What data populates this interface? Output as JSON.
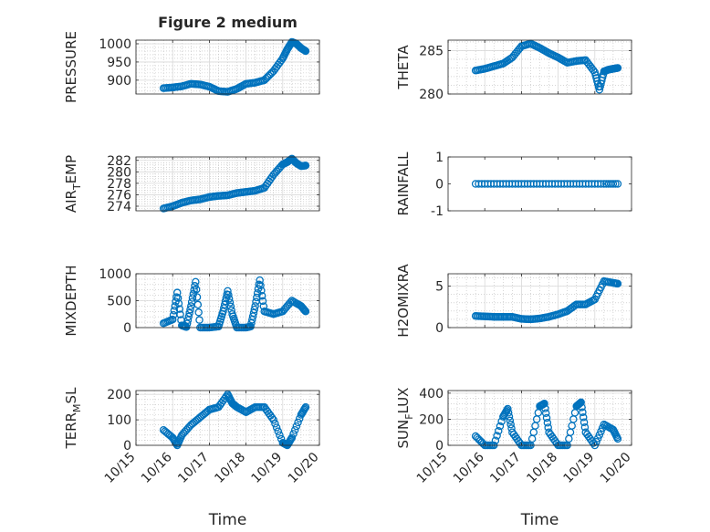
{
  "figure": {
    "title": "Figure 2 medium"
  },
  "chart_data": [
    {
      "type": "scatter",
      "title": "Figure 2 medium",
      "ylabel": "PRESSURE",
      "xlabel": "",
      "xlim": [
        "10/15",
        "10/20"
      ],
      "ylim": [
        862,
        1010
      ],
      "yticks": [
        "900",
        "950",
        "1000"
      ],
      "xtick_labels": [],
      "grid": true,
      "minor_grid": true,
      "marker": "open-circle",
      "color": "#0072BD",
      "x": [
        "10/15 18:00",
        "10/16 00:00",
        "10/16 06:00",
        "10/16 12:00",
        "10/16 18:00",
        "10/17 00:00",
        "10/17 06:00",
        "10/17 12:00",
        "10/17 18:00",
        "10/18 00:00",
        "10/18 06:00",
        "10/18 12:00",
        "10/18 18:00",
        "10/19 00:00",
        "10/19 03:00",
        "10/19 06:00",
        "10/19 09:00",
        "10/19 12:00",
        "10/19 15:00"
      ],
      "y": [
        878,
        880,
        883,
        890,
        888,
        882,
        870,
        868,
        876,
        890,
        893,
        900,
        925,
        960,
        985,
        1005,
        1000,
        988,
        980
      ]
    },
    {
      "type": "scatter",
      "ylabel": "THETA",
      "xlabel": "",
      "xlim": [
        "10/15",
        "10/20"
      ],
      "ylim": [
        280,
        286.2
      ],
      "yticks": [
        "280",
        "285"
      ],
      "xtick_labels": [],
      "grid": true,
      "minor_grid": true,
      "marker": "open-circle",
      "color": "#0072BD",
      "x": [
        "10/15 18:00",
        "10/16 00:00",
        "10/16 06:00",
        "10/16 12:00",
        "10/16 18:00",
        "10/17 00:00",
        "10/17 06:00",
        "10/17 12:00",
        "10/17 18:00",
        "10/18 00:00",
        "10/18 06:00",
        "10/18 12:00",
        "10/18 18:00",
        "10/19 00:00",
        "10/19 03:00",
        "10/19 06:00",
        "10/19 09:00",
        "10/19 12:00",
        "10/19 15:00"
      ],
      "y": [
        282.7,
        282.9,
        283.2,
        283.5,
        284.2,
        285.5,
        285.8,
        285.3,
        284.7,
        284.2,
        283.6,
        283.8,
        283.9,
        282.5,
        280.5,
        282.6,
        282.8,
        282.9,
        283.0
      ]
    },
    {
      "type": "scatter",
      "ylabel": "AIR_TEMP",
      "xlabel": "",
      "xlim": [
        "10/15",
        "10/20"
      ],
      "ylim": [
        273.2,
        282.6
      ],
      "yticks": [
        "274",
        "276",
        "278",
        "280",
        "282"
      ],
      "xtick_labels": [],
      "grid": true,
      "minor_grid": true,
      "marker": "open-circle",
      "color": "#0072BD",
      "x": [
        "10/15 18:00",
        "10/16 00:00",
        "10/16 06:00",
        "10/16 12:00",
        "10/16 18:00",
        "10/17 00:00",
        "10/17 06:00",
        "10/17 12:00",
        "10/17 18:00",
        "10/18 00:00",
        "10/18 06:00",
        "10/18 12:00",
        "10/18 18:00",
        "10/19 00:00",
        "10/19 03:00",
        "10/19 06:00",
        "10/19 09:00",
        "10/19 12:00",
        "10/19 15:00"
      ],
      "y": [
        273.6,
        274.0,
        274.6,
        275.0,
        275.2,
        275.6,
        275.8,
        275.9,
        276.3,
        276.5,
        276.7,
        277.2,
        279.5,
        281.3,
        281.7,
        282.3,
        281.5,
        281.0,
        281.1
      ]
    },
    {
      "type": "scatter",
      "ylabel": "RAINFALL",
      "xlabel": "",
      "xlim": [
        "10/15",
        "10/20"
      ],
      "ylim": [
        -1,
        1
      ],
      "yticks": [
        "-1",
        "0",
        "1"
      ],
      "xtick_labels": [],
      "grid": false,
      "marker": "open-circle",
      "color": "#0072BD",
      "x": [
        "10/15 18:00",
        "10/16 06:00",
        "10/16 18:00",
        "10/17 06:00",
        "10/17 18:00",
        "10/18 06:00",
        "10/18 18:00",
        "10/19 06:00",
        "10/19 15:00"
      ],
      "y": [
        0,
        0,
        0,
        0,
        0,
        0,
        0,
        0,
        0
      ]
    },
    {
      "type": "scatter",
      "ylabel": "MIXDEPTH",
      "xlabel": "",
      "xlim": [
        "10/15",
        "10/20"
      ],
      "ylim": [
        0,
        1000
      ],
      "yticks": [
        "0",
        "500",
        "1000"
      ],
      "xtick_labels": [],
      "grid": true,
      "minor_grid": true,
      "marker": "open-circle",
      "color": "#0072BD",
      "x": [
        "10/15 18:00",
        "10/16 00:00",
        "10/16 03:00",
        "10/16 06:00",
        "10/16 09:00",
        "10/16 12:00",
        "10/16 15:00",
        "10/16 18:00",
        "10/17 00:00",
        "10/17 06:00",
        "10/17 09:00",
        "10/17 12:00",
        "10/17 15:00",
        "10/17 18:00",
        "10/18 00:00",
        "10/18 03:00",
        "10/18 06:00",
        "10/18 09:00",
        "10/18 12:00",
        "10/18 18:00",
        "10/19 00:00",
        "10/19 06:00",
        "10/19 12:00",
        "10/19 15:00"
      ],
      "y": [
        80,
        150,
        650,
        40,
        10,
        400,
        850,
        0,
        0,
        20,
        300,
        680,
        250,
        0,
        0,
        20,
        400,
        880,
        300,
        250,
        300,
        500,
        400,
        300
      ]
    },
    {
      "type": "scatter",
      "ylabel": "H2OMIXRA",
      "xlabel": "",
      "xlim": [
        "10/15",
        "10/20"
      ],
      "ylim": [
        0,
        6.5
      ],
      "yticks": [
        "0",
        "5"
      ],
      "xtick_labels": [],
      "grid": true,
      "minor_grid": true,
      "marker": "open-circle",
      "color": "#0072BD",
      "x": [
        "10/15 18:00",
        "10/16 00:00",
        "10/16 06:00",
        "10/16 12:00",
        "10/16 18:00",
        "10/17 00:00",
        "10/17 06:00",
        "10/17 12:00",
        "10/17 18:00",
        "10/18 00:00",
        "10/18 06:00",
        "10/18 12:00",
        "10/18 18:00",
        "10/19 00:00",
        "10/19 06:00",
        "10/19 12:00",
        "10/19 15:00"
      ],
      "y": [
        1.4,
        1.35,
        1.3,
        1.3,
        1.3,
        1.05,
        1.0,
        1.1,
        1.3,
        1.6,
        2.0,
        2.8,
        2.8,
        3.4,
        5.6,
        5.4,
        5.3
      ]
    },
    {
      "type": "scatter",
      "ylabel": "TERR_MSL",
      "xlabel": "Time",
      "xlim": [
        "10/15",
        "10/20"
      ],
      "ylim": [
        0,
        215
      ],
      "yticks": [
        "0",
        "100",
        "200"
      ],
      "xtick_labels": [
        "10/15",
        "10/16",
        "10/17",
        "10/18",
        "10/19",
        "10/20"
      ],
      "grid": true,
      "minor_grid": true,
      "marker": "open-circle",
      "color": "#0072BD",
      "x": [
        "10/15 18:00",
        "10/16 00:00",
        "10/16 03:00",
        "10/16 06:00",
        "10/16 12:00",
        "10/16 18:00",
        "10/17 00:00",
        "10/17 06:00",
        "10/17 12:00",
        "10/17 15:00",
        "10/17 18:00",
        "10/18 00:00",
        "10/18 06:00",
        "10/18 12:00",
        "10/18 18:00",
        "10/19 00:00",
        "10/19 03:00",
        "10/19 06:00",
        "10/19 12:00",
        "10/19 15:00"
      ],
      "y": [
        60,
        30,
        0,
        40,
        80,
        110,
        140,
        150,
        200,
        165,
        150,
        130,
        150,
        150,
        100,
        10,
        0,
        30,
        120,
        150
      ]
    },
    {
      "type": "scatter",
      "ylabel": "SUN_FLUX",
      "xlabel": "Time",
      "xlim": [
        "10/15",
        "10/20"
      ],
      "ylim": [
        0,
        420
      ],
      "yticks": [
        "0",
        "200",
        "400"
      ],
      "xtick_labels": [
        "10/15",
        "10/16",
        "10/17",
        "10/18",
        "10/19",
        "10/20"
      ],
      "grid": true,
      "minor_grid": true,
      "marker": "open-circle",
      "color": "#0072BD",
      "x": [
        "10/15 18:00",
        "10/16 00:00",
        "10/16 06:00",
        "10/16 12:00",
        "10/16 15:00",
        "10/16 18:00",
        "10/17 00:00",
        "10/17 06:00",
        "10/17 12:00",
        "10/17 15:00",
        "10/17 18:00",
        "10/18 00:00",
        "10/18 06:00",
        "10/18 12:00",
        "10/18 15:00",
        "10/18 18:00",
        "10/19 00:00",
        "10/19 06:00",
        "10/19 12:00",
        "10/19 15:00"
      ],
      "y": [
        70,
        0,
        0,
        220,
        280,
        100,
        0,
        0,
        300,
        320,
        100,
        0,
        0,
        300,
        330,
        100,
        0,
        160,
        120,
        50
      ]
    }
  ]
}
